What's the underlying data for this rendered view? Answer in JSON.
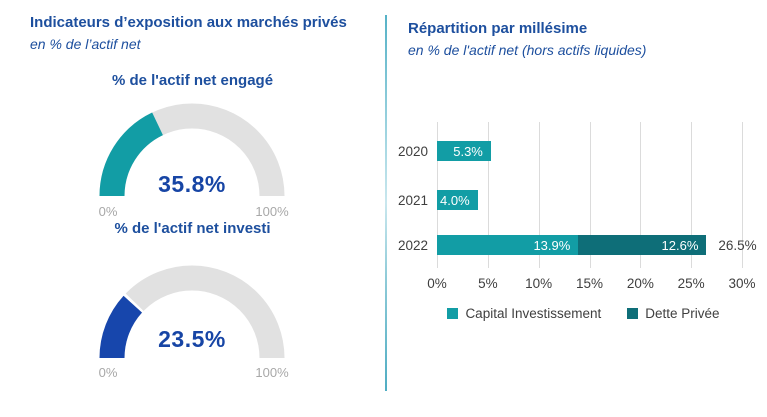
{
  "left": {
    "title": "Indicateurs d’exposition aux marchés privés",
    "subtitle": "en % de l’actif net"
  },
  "right": {
    "title": "Répartition par millésime",
    "subtitle": "en % de l'actif net (hors actifs liquides)"
  },
  "colors": {
    "title_blue": "#1D4F9E",
    "value_blue": "#1745A5",
    "teal": "#129DA5",
    "dark_teal": "#0E6E78",
    "gauge_blue": "#1746AC",
    "track_gray": "#E1E1E1",
    "axis_gray": "#A8A8A8",
    "text_dark": "#3F3F3F",
    "gridline_gray": "#DBDBDB",
    "divider_blue": "#56B2C7"
  },
  "chart_data": [
    {
      "type": "gauge",
      "title": "% de l'actif net engagé",
      "value": 35.8,
      "value_label": "35.8%",
      "range": [
        0,
        100
      ],
      "axis_labels": [
        "0%",
        "100%"
      ],
      "color": "#129DA5"
    },
    {
      "type": "gauge",
      "title": "% de l'actif net investi",
      "value": 23.5,
      "value_label": "23.5%",
      "range": [
        0,
        100
      ],
      "axis_labels": [
        "0%",
        "100%"
      ],
      "color": "#1746AC"
    },
    {
      "type": "bar",
      "orientation": "horizontal",
      "categories": [
        "2020",
        "2021",
        "2022"
      ],
      "series": [
        {
          "name": "Capital Investissement",
          "color": "#129DA5",
          "values": [
            5.3,
            4.0,
            13.9
          ],
          "labels": [
            "5.3%",
            "4.0%",
            "13.9%"
          ]
        },
        {
          "name": "Dette Privée",
          "color": "#0E6E78",
          "values": [
            0,
            0,
            12.6
          ],
          "labels": [
            "",
            "",
            "12.6%"
          ]
        }
      ],
      "total_labels": [
        "",
        "",
        "26.5%"
      ],
      "xlim": [
        0,
        30
      ],
      "x_ticks": [
        "0%",
        "5%",
        "10%",
        "15%",
        "20%",
        "25%",
        "30%"
      ],
      "grid": true,
      "legend_position": "bottom"
    }
  ]
}
